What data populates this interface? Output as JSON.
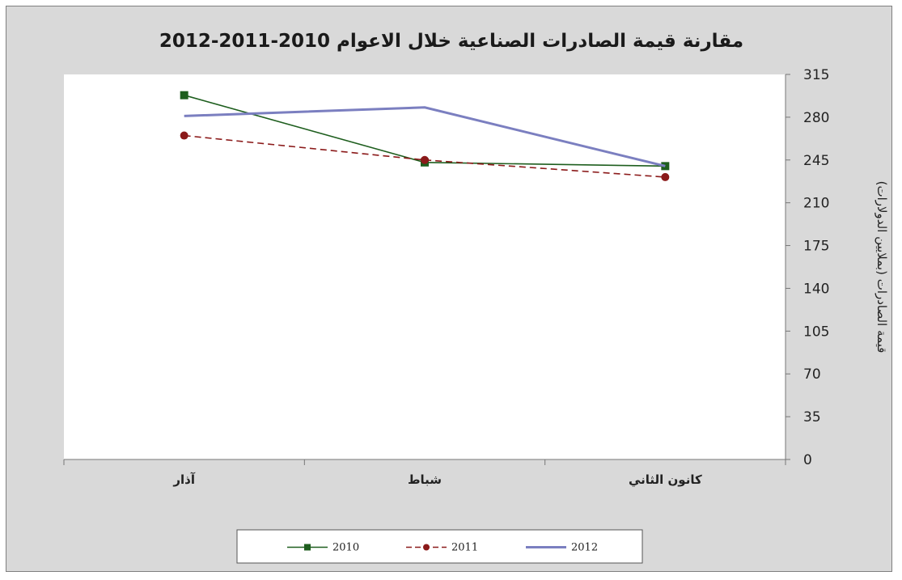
{
  "chart_data": {
    "type": "line",
    "title": "مقارنة قيمة الصادرات الصناعية خلال  الاعوام 2010-2011-2012",
    "ylabel": "قيمة الصادرات (بملايين الدولارات)",
    "xlabel": "",
    "ylim": [
      0,
      315
    ],
    "yticks": [
      0,
      35,
      70,
      105,
      140,
      175,
      210,
      245,
      280,
      315
    ],
    "y_axis_side": "right",
    "categories": [
      "آذار",
      "شباط",
      "كانون الثاني"
    ],
    "grid": false,
    "legend_position": "bottom",
    "series": [
      {
        "name": "2010",
        "values": [
          298,
          243,
          240
        ],
        "color": "#1e5e1e",
        "marker": "square",
        "dash": "solid"
      },
      {
        "name": "2011",
        "values": [
          265,
          245,
          231
        ],
        "color": "#8b1a1a",
        "marker": "circle",
        "dash": "dashed"
      },
      {
        "name": "2012",
        "values": [
          281,
          288,
          240
        ],
        "color": "#7b7fc0",
        "marker": "none",
        "dash": "solid"
      }
    ]
  }
}
